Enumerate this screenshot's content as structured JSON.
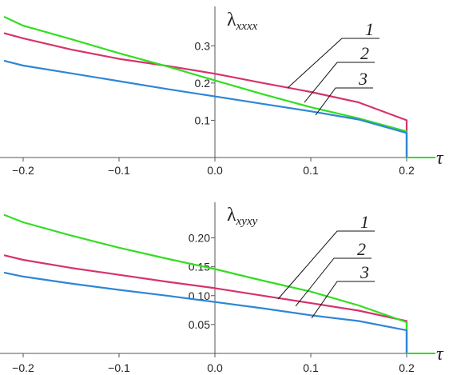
{
  "chart_data": [
    {
      "type": "line",
      "ylabel_symbol": "λ",
      "ylabel_subscript": "xxxx",
      "xlabel": "τ",
      "xlim": [
        -0.22,
        0.23
      ],
      "ylim": [
        0,
        0.38
      ],
      "xticks": [
        "−0.2",
        "−0.1",
        "0.0",
        "0.1",
        "0.2"
      ],
      "xtick_values": [
        -0.2,
        -0.1,
        0.0,
        0.1,
        0.2
      ],
      "yticks": [
        "0.1",
        "0.2",
        "0.3"
      ],
      "ytick_values": [
        0.1,
        0.2,
        0.3
      ],
      "grid": false,
      "curve_labels": [
        "1",
        "2",
        "3"
      ],
      "series": [
        {
          "name": "1",
          "color": "#d6336c",
          "x": [
            -0.22,
            -0.2,
            -0.15,
            -0.1,
            -0.05,
            0.0,
            0.05,
            0.1,
            0.15,
            0.2,
            0.2
          ],
          "y": [
            0.334,
            0.32,
            0.29,
            0.265,
            0.246,
            0.225,
            0.2,
            0.176,
            0.148,
            0.1,
            0.0
          ]
        },
        {
          "name": "2",
          "color": "#33dd22",
          "x": [
            -0.22,
            -0.2,
            -0.15,
            -0.1,
            -0.05,
            0.0,
            0.05,
            0.1,
            0.15,
            0.2,
            0.2
          ],
          "y": [
            0.378,
            0.354,
            0.318,
            0.28,
            0.245,
            0.207,
            0.17,
            0.135,
            0.105,
            0.07,
            0.0
          ]
        },
        {
          "name": "3",
          "color": "#2e86d6",
          "x": [
            -0.22,
            -0.2,
            -0.15,
            -0.1,
            -0.05,
            0.0,
            0.05,
            0.1,
            0.15,
            0.2,
            0.2
          ],
          "y": [
            0.26,
            0.247,
            0.226,
            0.205,
            0.184,
            0.164,
            0.144,
            0.124,
            0.102,
            0.066,
            0.0
          ]
        }
      ]
    },
    {
      "type": "line",
      "ylabel_symbol": "λ",
      "ylabel_subscript": "xyxy",
      "xlabel": "τ",
      "xlim": [
        -0.22,
        0.23
      ],
      "ylim": [
        0,
        0.245
      ],
      "xticks": [
        "−0.2",
        "−0.1",
        "0.0",
        "0.1",
        "0.2"
      ],
      "xtick_values": [
        -0.2,
        -0.1,
        0.0,
        0.1,
        0.2
      ],
      "yticks": [
        "0.05",
        "0.10",
        "0.15",
        "0.20"
      ],
      "ytick_values": [
        0.05,
        0.1,
        0.15,
        0.2
      ],
      "grid": false,
      "curve_labels": [
        "1",
        "2",
        "3"
      ],
      "series": [
        {
          "name": "1",
          "color": "#d6336c",
          "x": [
            -0.22,
            -0.2,
            -0.15,
            -0.1,
            -0.05,
            0.0,
            0.05,
            0.1,
            0.15,
            0.2,
            0.2
          ],
          "y": [
            0.17,
            0.162,
            0.148,
            0.136,
            0.124,
            0.113,
            0.1,
            0.087,
            0.074,
            0.056,
            0.0
          ]
        },
        {
          "name": "2",
          "color": "#33dd22",
          "x": [
            -0.22,
            -0.2,
            -0.15,
            -0.1,
            -0.05,
            0.0,
            0.05,
            0.1,
            0.15,
            0.2,
            0.2
          ],
          "y": [
            0.24,
            0.227,
            0.204,
            0.183,
            0.164,
            0.146,
            0.126,
            0.107,
            0.083,
            0.054,
            0.0
          ]
        },
        {
          "name": "3",
          "color": "#2e86d6",
          "x": [
            -0.22,
            -0.2,
            -0.15,
            -0.1,
            -0.05,
            0.0,
            0.05,
            0.1,
            0.15,
            0.2,
            0.2
          ],
          "y": [
            0.14,
            0.133,
            0.121,
            0.11,
            0.1,
            0.089,
            0.078,
            0.066,
            0.056,
            0.04,
            0.0
          ]
        }
      ]
    }
  ]
}
